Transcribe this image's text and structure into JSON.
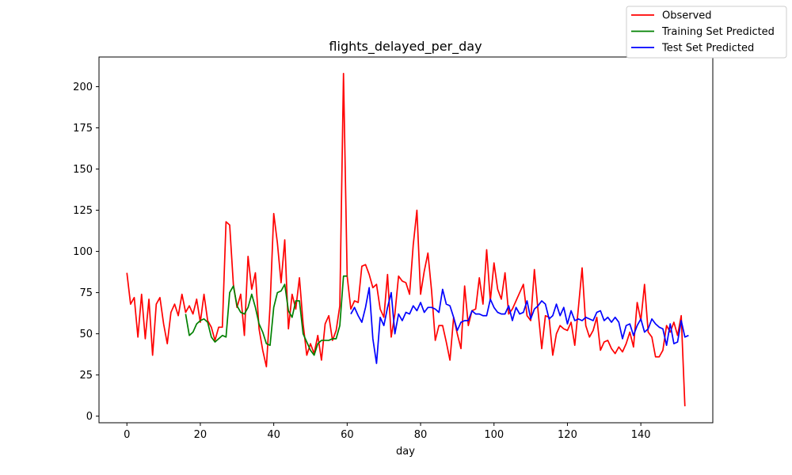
{
  "chart_data": {
    "type": "line",
    "title": "flights_delayed_per_day",
    "xlabel": "day",
    "ylabel": "",
    "xlim": [
      -7.6,
      159.6
    ],
    "ylim": [
      -4,
      218
    ],
    "xticks": [
      0,
      20,
      40,
      60,
      80,
      100,
      120,
      140
    ],
    "yticks": [
      0,
      25,
      50,
      75,
      100,
      125,
      150,
      175,
      200
    ],
    "grid": false,
    "legend_position": "top-right",
    "series": [
      {
        "name": "Observed",
        "color": "#ff0000",
        "x_start": 0,
        "values": [
          87,
          68,
          72,
          48,
          74,
          47,
          71,
          37,
          68,
          72,
          56,
          44,
          63,
          68,
          61,
          74,
          63,
          67,
          62,
          71,
          57,
          74,
          58,
          54,
          46,
          54,
          54,
          118,
          116,
          80,
          66,
          74,
          49,
          97,
          77,
          87,
          53,
          40,
          30,
          67,
          123,
          105,
          81,
          107,
          53,
          74,
          65,
          84,
          56,
          37,
          44,
          38,
          49,
          34,
          56,
          61,
          46,
          52,
          67,
          208,
          85,
          65,
          70,
          69,
          91,
          92,
          86,
          78,
          80,
          65,
          60,
          86,
          48,
          62,
          85,
          82,
          81,
          74,
          104,
          125,
          74,
          88,
          99,
          76,
          46,
          55,
          55,
          45,
          34,
          60,
          50,
          41,
          79,
          55,
          64,
          65,
          84,
          68,
          101,
          70,
          93,
          77,
          71,
          87,
          62,
          65,
          70,
          75,
          80,
          61,
          58,
          89,
          64,
          41,
          61,
          60,
          37,
          50,
          55,
          53,
          52,
          57,
          43,
          66,
          90,
          55,
          48,
          52,
          60,
          40,
          45,
          46,
          41,
          38,
          42,
          39,
          44,
          51,
          42,
          69,
          58,
          80,
          51,
          48,
          36,
          36,
          40,
          55,
          51,
          57,
          49,
          61,
          6
        ]
      },
      {
        "name": "Training Set Predicted",
        "color": "#008000",
        "x_start": 16,
        "values": [
          62,
          49,
          51,
          56,
          58,
          59,
          57,
          48,
          45,
          47,
          49,
          48,
          75,
          79,
          67,
          63,
          62,
          66,
          74,
          66,
          56,
          51,
          44,
          43,
          66,
          75,
          76,
          80,
          64,
          60,
          70,
          70,
          50,
          45,
          40,
          37,
          44,
          46,
          46,
          46,
          47,
          47,
          55,
          85,
          85
        ]
      },
      {
        "name": "Test Set Predicted",
        "color": "#0000ff",
        "x_start": 61,
        "values": [
          62,
          66,
          61,
          57,
          66,
          78,
          47,
          32,
          60,
          55,
          66,
          75,
          50,
          62,
          58,
          63,
          62,
          67,
          64,
          69,
          63,
          66,
          66,
          65,
          63,
          77,
          68,
          67,
          60,
          52,
          57,
          58,
          58,
          64,
          62,
          62,
          61,
          61,
          71,
          66,
          63,
          62,
          62,
          67,
          58,
          66,
          62,
          63,
          70,
          59,
          65,
          67,
          70,
          68,
          59,
          61,
          68,
          61,
          66,
          56,
          64,
          58,
          59,
          58,
          60,
          59,
          58,
          63,
          64,
          58,
          60,
          57,
          60,
          57,
          47,
          55,
          56,
          49,
          55,
          59,
          51,
          53,
          59,
          56,
          54,
          53,
          43,
          56,
          44,
          45,
          58,
          48,
          49
        ]
      }
    ]
  }
}
